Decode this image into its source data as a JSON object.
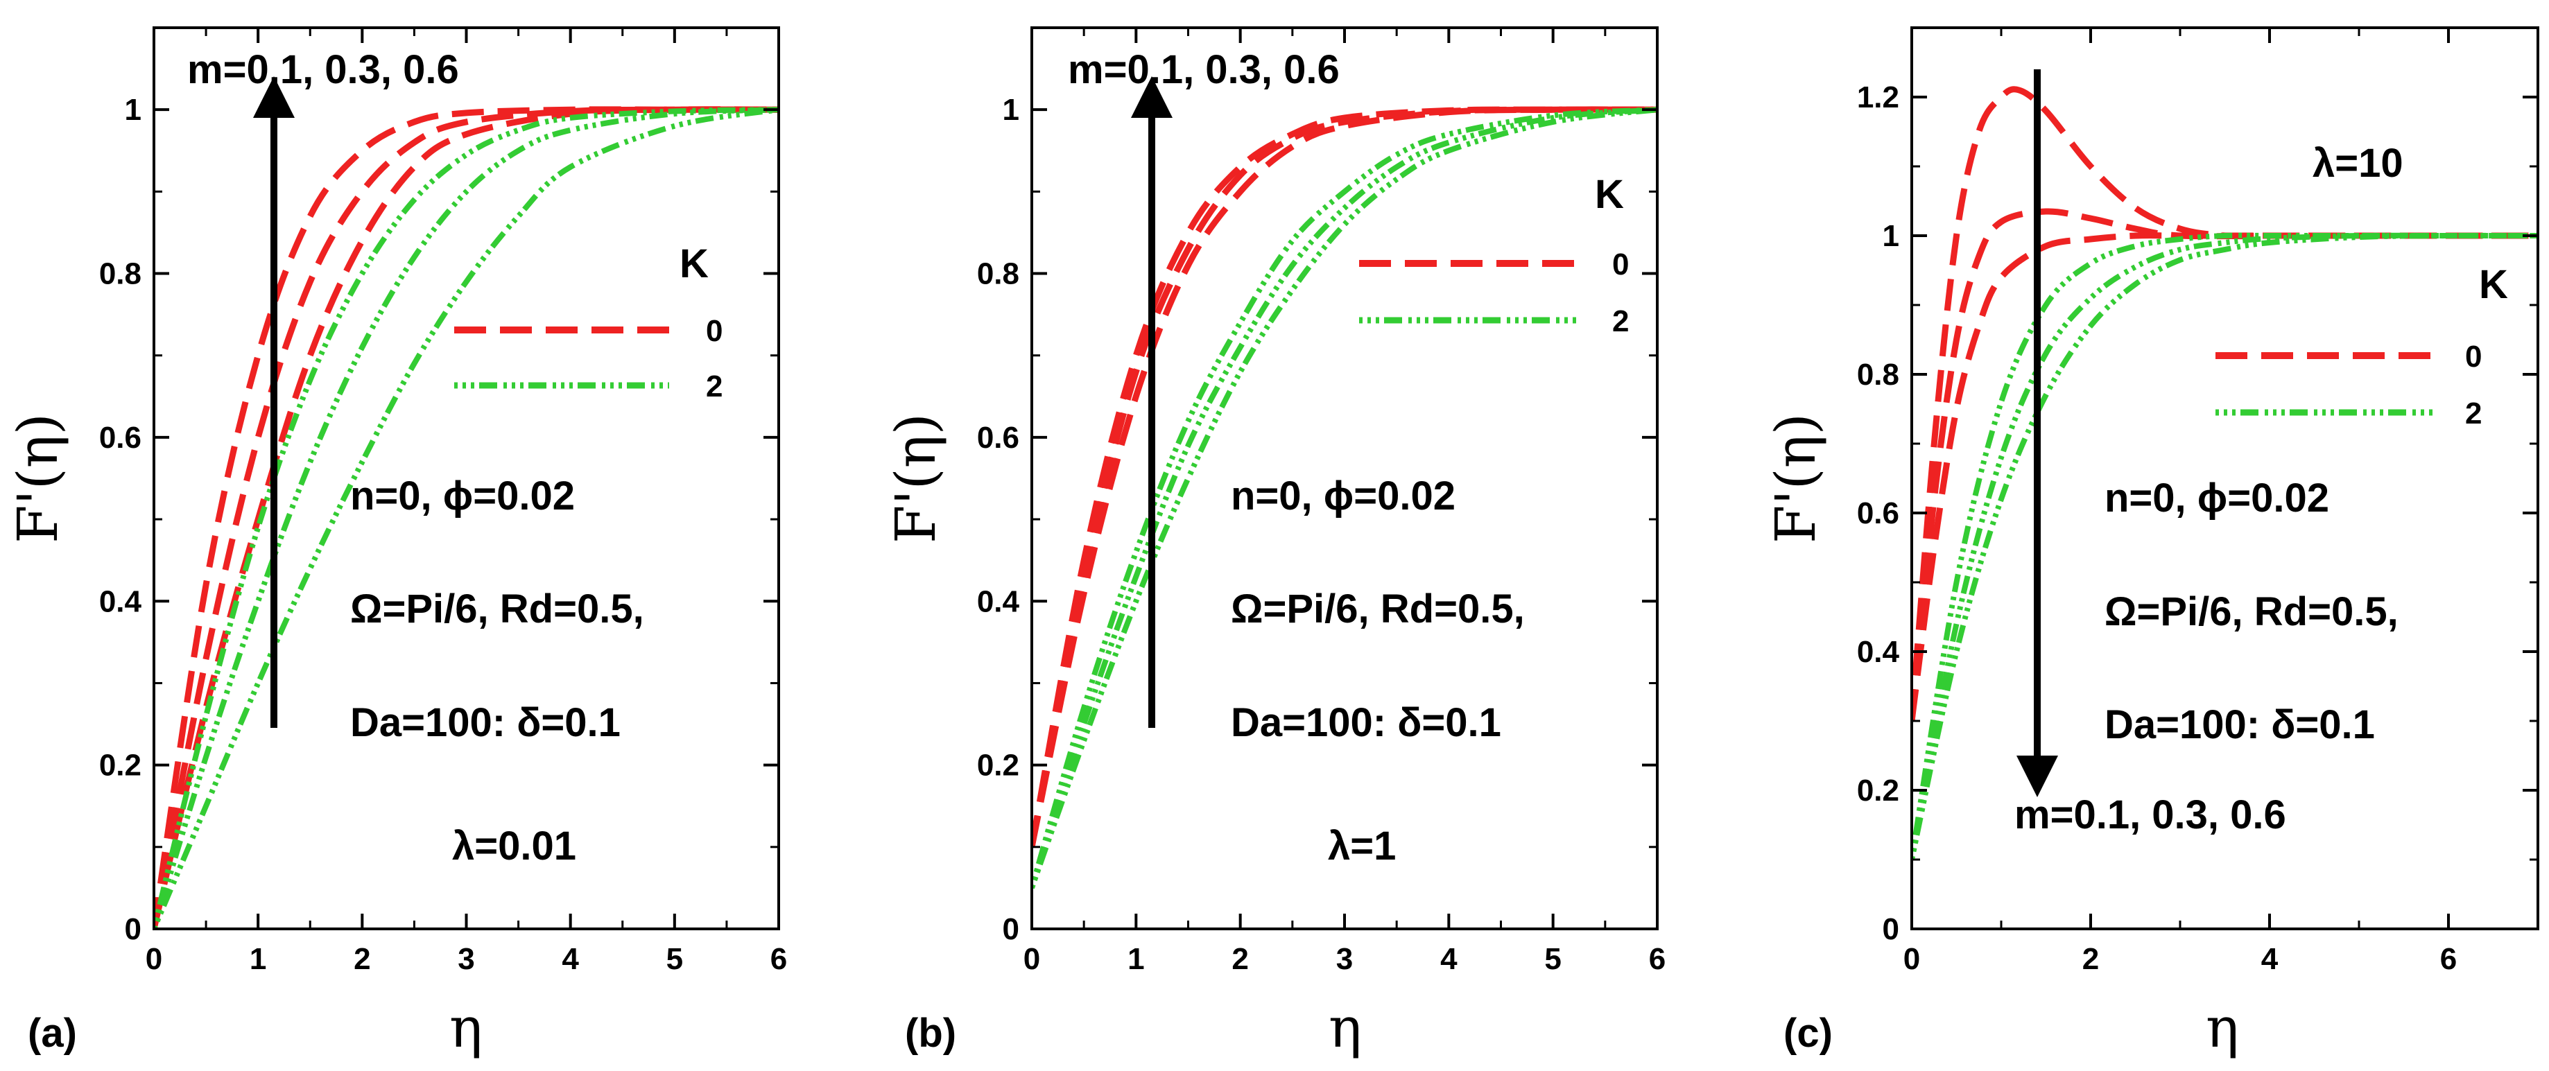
{
  "chart_data": [
    {
      "type": "line",
      "panel_label": "(a)",
      "xlabel": "η",
      "ylabel": "F'(η)",
      "xlim": [
        0,
        6
      ],
      "ylim": [
        0,
        1.1
      ],
      "xticks": [
        0,
        1,
        2,
        3,
        4,
        5,
        6
      ],
      "yticks": [
        0,
        0.2,
        0.4,
        0.6,
        0.8,
        1
      ],
      "arrow": {
        "direction": "up",
        "label": "m=0.1, 0.3, 0.6"
      },
      "legend": {
        "title": "K",
        "entries": [
          {
            "label": "0",
            "style": "dashed",
            "color": "#ee2222"
          },
          {
            "label": "2",
            "style": "dash-dot",
            "color": "#33cc33"
          }
        ]
      },
      "annotations": [
        "n=0, ϕ=0.02",
        "Ω=Pi/6, Rd=0.5,",
        "Da=100: δ=0.1",
        "λ=0.01"
      ],
      "series": [
        {
          "name": "K=0, m=0.1",
          "style": "dashed",
          "color": "#ee2222",
          "x": [
            0,
            0.5,
            1,
            1.5,
            2,
            2.5,
            3,
            4,
            5,
            6
          ],
          "values": [
            0,
            0.42,
            0.7,
            0.87,
            0.95,
            0.985,
            0.996,
            1,
            1,
            1
          ]
        },
        {
          "name": "K=0, m=0.3",
          "style": "dashed",
          "color": "#ee2222",
          "x": [
            0,
            0.5,
            1,
            1.5,
            2,
            2.5,
            3,
            4,
            5,
            6
          ],
          "values": [
            0,
            0.33,
            0.6,
            0.79,
            0.9,
            0.96,
            0.985,
            0.998,
            1,
            1
          ]
        },
        {
          "name": "K=0, m=0.6",
          "style": "dashed",
          "color": "#ee2222",
          "x": [
            0,
            0.5,
            1,
            1.5,
            2,
            2.5,
            3,
            4,
            5,
            6
          ],
          "values": [
            0,
            0.27,
            0.5,
            0.7,
            0.84,
            0.93,
            0.97,
            0.995,
            1,
            1
          ]
        },
        {
          "name": "K=2, m=0.1",
          "style": "dash-dot",
          "color": "#33cc33",
          "x": [
            0,
            0.5,
            1,
            1.5,
            2,
            2.5,
            3,
            3.5,
            4,
            5,
            6
          ],
          "values": [
            0,
            0.26,
            0.49,
            0.67,
            0.8,
            0.89,
            0.945,
            0.975,
            0.99,
            0.998,
            1
          ]
        },
        {
          "name": "K=2, m=0.3",
          "style": "dash-dot",
          "color": "#33cc33",
          "x": [
            0,
            0.5,
            1,
            1.5,
            2,
            2.5,
            3,
            3.5,
            4,
            5,
            6
          ],
          "values": [
            0,
            0.21,
            0.4,
            0.57,
            0.71,
            0.82,
            0.9,
            0.95,
            0.975,
            0.995,
            1
          ]
        },
        {
          "name": "K=2, m=0.6",
          "style": "dash-dot",
          "color": "#33cc33",
          "x": [
            0,
            0.5,
            1,
            1.5,
            2,
            2.5,
            3,
            3.5,
            4,
            5,
            6
          ],
          "values": [
            0,
            0.15,
            0.3,
            0.44,
            0.57,
            0.69,
            0.79,
            0.87,
            0.93,
            0.98,
            1
          ]
        }
      ]
    },
    {
      "type": "line",
      "panel_label": "(b)",
      "xlabel": "η",
      "ylabel": "F'(η)",
      "xlim": [
        0,
        6
      ],
      "ylim": [
        0,
        1.1
      ],
      "xticks": [
        0,
        1,
        2,
        3,
        4,
        5,
        6
      ],
      "yticks": [
        0,
        0.2,
        0.4,
        0.6,
        0.8,
        1
      ],
      "arrow": {
        "direction": "up",
        "label": "m=0.1, 0.3, 0.6"
      },
      "legend": {
        "title": "K",
        "entries": [
          {
            "label": "0",
            "style": "dashed",
            "color": "#ee2222"
          },
          {
            "label": "2",
            "style": "dash-dot",
            "color": "#33cc33"
          }
        ]
      },
      "annotations": [
        "n=0, ϕ=0.02",
        "Ω=Pi/6, Rd=0.5,",
        "Da=100: δ=0.1",
        "λ=1"
      ],
      "series": [
        {
          "name": "K=0, m=0.1",
          "style": "dashed",
          "color": "#ee2222",
          "x": [
            0,
            0.5,
            1,
            1.5,
            2,
            2.5,
            3,
            4,
            5,
            6
          ],
          "values": [
            0.1,
            0.45,
            0.7,
            0.85,
            0.93,
            0.97,
            0.99,
            0.999,
            1,
            1
          ]
        },
        {
          "name": "K=0, m=0.3",
          "style": "dashed",
          "color": "#ee2222",
          "x": [
            0,
            0.5,
            1,
            1.5,
            2,
            2.5,
            3,
            4,
            5,
            6
          ],
          "values": [
            0.1,
            0.43,
            0.68,
            0.83,
            0.92,
            0.965,
            0.985,
            0.998,
            1,
            1
          ]
        },
        {
          "name": "K=0, m=0.6",
          "style": "dashed",
          "color": "#ee2222",
          "x": [
            0,
            0.5,
            1,
            1.5,
            2,
            2.5,
            3,
            4,
            5,
            6
          ],
          "values": [
            0.1,
            0.41,
            0.65,
            0.81,
            0.9,
            0.955,
            0.98,
            0.997,
            1,
            1
          ]
        },
        {
          "name": "K=2, m=0.1",
          "style": "dash-dot",
          "color": "#33cc33",
          "x": [
            0,
            0.5,
            1,
            1.5,
            2,
            2.5,
            3,
            3.5,
            4,
            5,
            6
          ],
          "values": [
            0.05,
            0.27,
            0.46,
            0.62,
            0.74,
            0.84,
            0.9,
            0.945,
            0.97,
            0.993,
            1
          ]
        },
        {
          "name": "K=2, m=0.3",
          "style": "dash-dot",
          "color": "#33cc33",
          "x": [
            0,
            0.5,
            1,
            1.5,
            2,
            2.5,
            3,
            3.5,
            4,
            5,
            6
          ],
          "values": [
            0.05,
            0.25,
            0.43,
            0.59,
            0.71,
            0.81,
            0.88,
            0.93,
            0.96,
            0.99,
            1
          ]
        },
        {
          "name": "K=2, m=0.6",
          "style": "dash-dot",
          "color": "#33cc33",
          "x": [
            0,
            0.5,
            1,
            1.5,
            2,
            2.5,
            3,
            3.5,
            4,
            5,
            6
          ],
          "values": [
            0.05,
            0.23,
            0.4,
            0.55,
            0.68,
            0.78,
            0.86,
            0.915,
            0.95,
            0.985,
            1
          ]
        }
      ]
    },
    {
      "type": "line",
      "panel_label": "(c)",
      "xlabel": "η",
      "ylabel": "F'(η)",
      "xlim": [
        0,
        7
      ],
      "ylim": [
        0,
        1.3
      ],
      "xticks": [
        0,
        2,
        4,
        6
      ],
      "yticks": [
        0,
        0.2,
        0.4,
        0.6,
        0.8,
        1,
        1.2
      ],
      "arrow": {
        "direction": "down",
        "label": "m=0.1, 0.3, 0.6"
      },
      "legend": {
        "title": "K",
        "entries": [
          {
            "label": "0",
            "style": "dashed",
            "color": "#ee2222"
          },
          {
            "label": "2",
            "style": "dash-dot",
            "color": "#33cc33"
          }
        ]
      },
      "annotations": [
        "λ=10",
        "n=0, ϕ=0.02",
        "Ω=Pi/6, Rd=0.5,",
        "Da=100: δ=0.1"
      ],
      "series": [
        {
          "name": "K=0, m=0.1",
          "style": "dashed",
          "color": "#ee2222",
          "x": [
            0,
            0.25,
            0.5,
            0.75,
            1,
            1.2,
            1.5,
            2,
            2.5,
            3,
            3.5,
            4,
            5,
            7
          ],
          "values": [
            0.3,
            0.7,
            1.0,
            1.15,
            1.2,
            1.21,
            1.18,
            1.1,
            1.04,
            1.01,
            1.0,
            1.0,
            1.0,
            1.0
          ]
        },
        {
          "name": "K=0, m=0.3",
          "style": "dashed",
          "color": "#ee2222",
          "x": [
            0,
            0.25,
            0.5,
            0.75,
            1,
            1.5,
            2,
            2.5,
            3,
            4,
            5,
            7
          ],
          "values": [
            0.3,
            0.62,
            0.85,
            0.97,
            1.02,
            1.035,
            1.025,
            1.01,
            1.0,
            1.0,
            1.0,
            1.0
          ]
        },
        {
          "name": "K=0, m=0.6",
          "style": "dashed",
          "color": "#ee2222",
          "x": [
            0,
            0.25,
            0.5,
            0.75,
            1,
            1.5,
            2,
            2.5,
            3,
            4,
            5,
            7
          ],
          "values": [
            0.3,
            0.55,
            0.75,
            0.87,
            0.94,
            0.985,
            0.995,
            1.0,
            1.0,
            1.0,
            1.0,
            1.0
          ]
        },
        {
          "name": "K=2, m=0.1",
          "style": "dash-dot",
          "color": "#33cc33",
          "x": [
            0,
            0.5,
            1,
            1.5,
            2,
            2.5,
            3,
            3.5,
            4,
            5,
            6,
            7
          ],
          "values": [
            0.1,
            0.5,
            0.76,
            0.9,
            0.96,
            0.985,
            0.995,
            1.0,
            1.0,
            1.0,
            1.0,
            1.0
          ]
        },
        {
          "name": "K=2, m=0.3",
          "style": "dash-dot",
          "color": "#33cc33",
          "x": [
            0,
            0.5,
            1,
            1.5,
            2,
            2.5,
            3,
            3.5,
            4,
            5,
            6,
            7
          ],
          "values": [
            0.1,
            0.44,
            0.68,
            0.83,
            0.91,
            0.955,
            0.98,
            0.99,
            0.996,
            1.0,
            1.0,
            1.0
          ]
        },
        {
          "name": "K=2, m=0.6",
          "style": "dash-dot",
          "color": "#33cc33",
          "x": [
            0,
            0.5,
            1,
            1.5,
            2,
            2.5,
            3,
            3.5,
            4,
            5,
            6,
            7
          ],
          "values": [
            0.1,
            0.4,
            0.62,
            0.77,
            0.87,
            0.93,
            0.965,
            0.98,
            0.99,
            0.998,
            1.0,
            1.0
          ]
        }
      ]
    }
  ]
}
